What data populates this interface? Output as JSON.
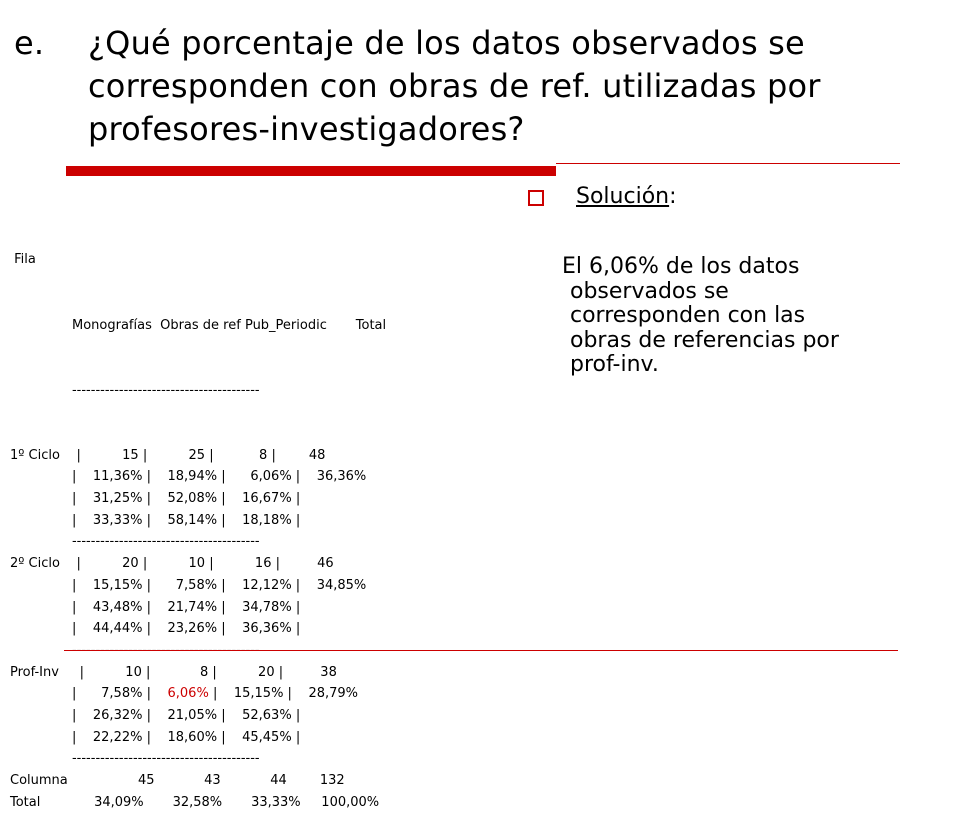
{
  "title": {
    "label": "e.",
    "lines": [
      "¿Qué porcentaje de los datos observados se",
      "corresponden con obras de ref. utilizadas por",
      "profesores-investigadores?"
    ]
  },
  "table": {
    "header_fila": " Fila",
    "header_cols": "               Monografías  Obras de ref Pub_Periodic       Total",
    "sep": "               ----------------------------------------",
    "rows": [
      {
        "a": "1º Ciclo    |          15 |          25 |           8 |        48"
      },
      {
        "a": "               |    11,36% |    18,94% |      6,06% |    36,36%"
      },
      {
        "a": "               |    31,25% |    52,08% |    16,67% |"
      },
      {
        "a": "               |    33,33% |    58,14% |    18,18% |"
      },
      {
        "a": "               ----------------------------------------"
      },
      {
        "a": "2º Ciclo    |          20 |          10 |          16 |         46"
      },
      {
        "a": "               |    15,15% |      7,58% |    12,12% |    34,85%"
      },
      {
        "a": "               |    43,48% |    21,74% |    34,78% |"
      },
      {
        "a": "               |    44,44% |    23,26% |    36,36% |"
      },
      {
        "a": "               ----------------------------------------"
      },
      {
        "a": "Prof-Inv     |          10 |            8 |          20 |         38"
      },
      {
        "a": "               |      7,58% | ",
        "red": "   6,06%",
        "b": " |    15,15% |    28,79%"
      },
      {
        "a": "               |    26,32% |    21,05% |    52,63% |"
      },
      {
        "a": "               |    22,22% |    18,60% |    45,45% |"
      },
      {
        "a": "               ----------------------------------------"
      },
      {
        "a": "Columna                 45            43            44        132"
      },
      {
        "a": "Total             34,09%       32,58%       33,33%     100,00%"
      }
    ]
  },
  "solution": {
    "label": "Solución",
    "colon": ":",
    "answer_lines": [
      "El 6,06% de los datos",
      "observados se",
      "corresponden con las",
      "obras de referencias por",
      "prof-inv."
    ]
  },
  "colors": {
    "accent": "#cc0000",
    "text": "#000000",
    "background": "#ffffff"
  }
}
